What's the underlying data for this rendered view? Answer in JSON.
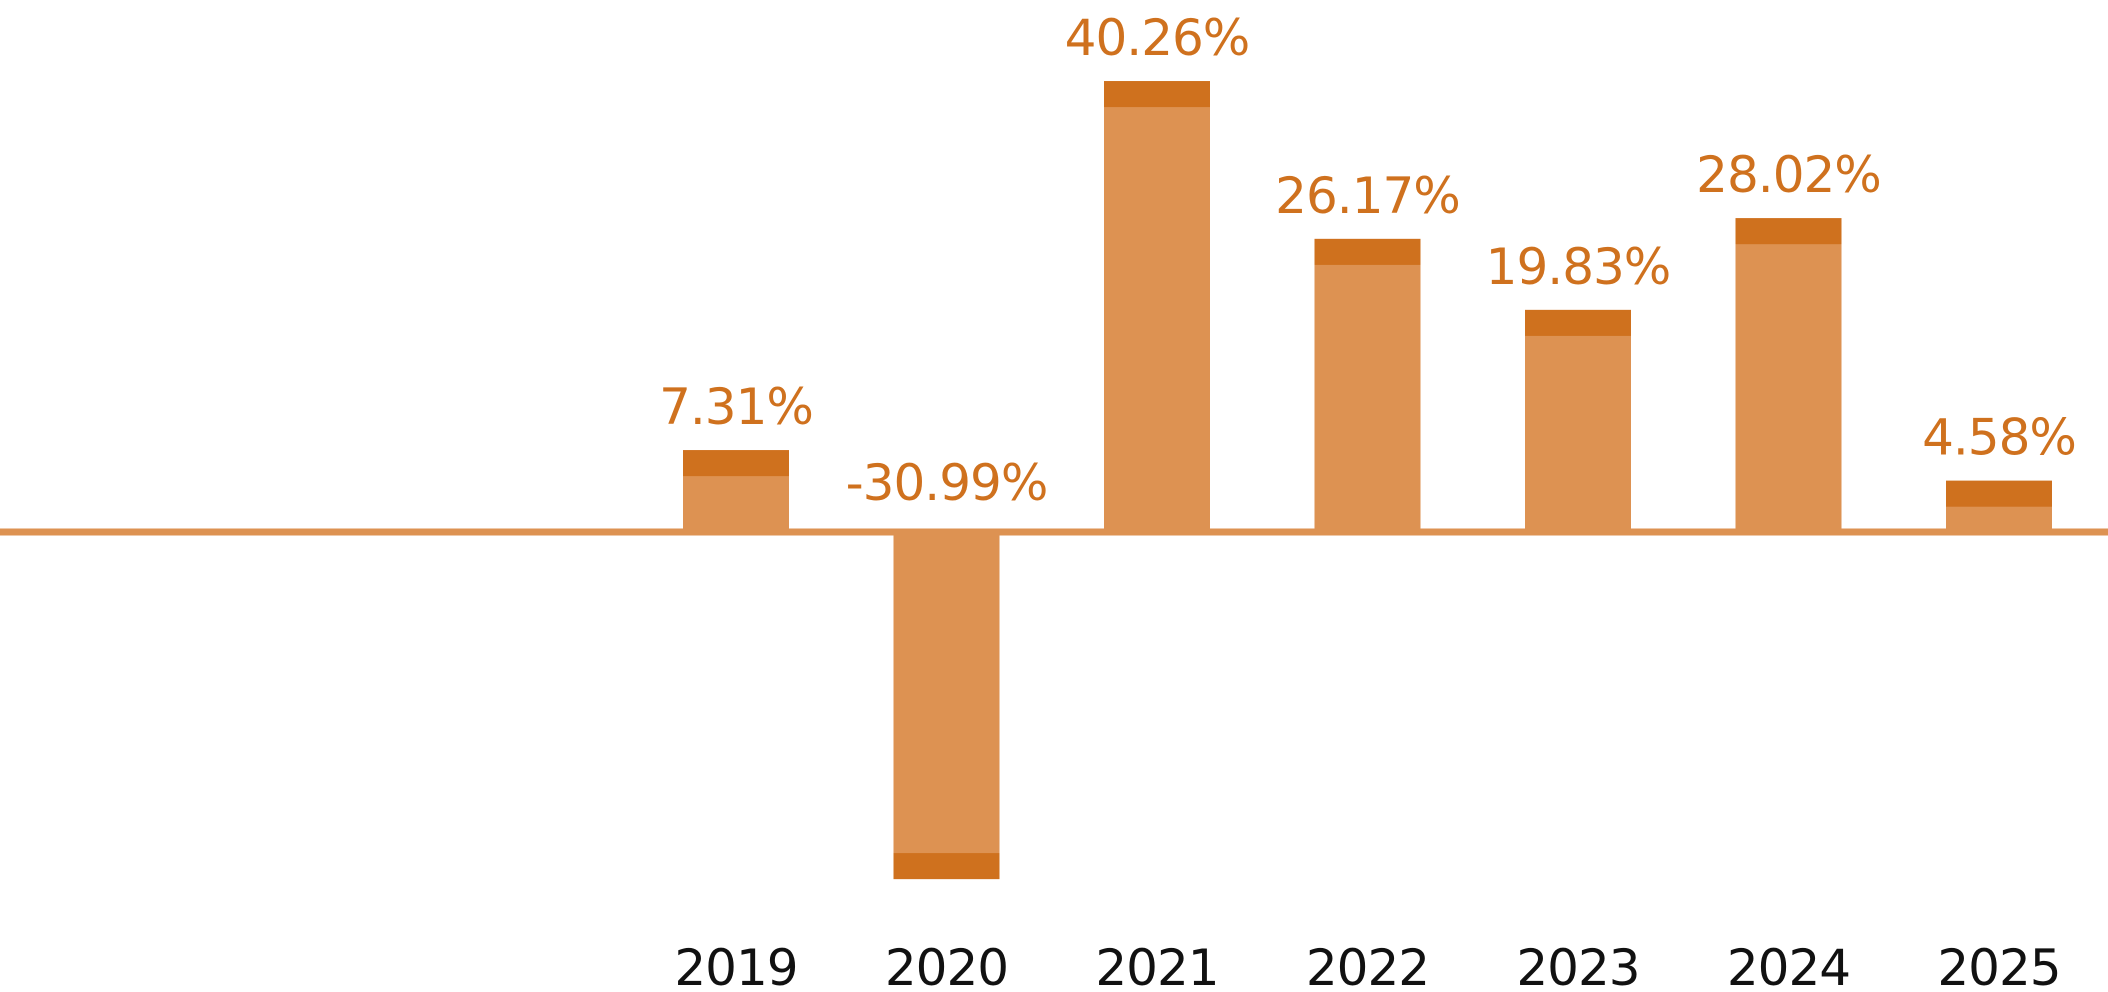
{
  "chart_data": {
    "type": "bar",
    "title": "",
    "xlabel": "",
    "ylabel": "",
    "categories": [
      "2019",
      "2020",
      "2021",
      "2022",
      "2023",
      "2024",
      "2025"
    ],
    "values": [
      7.31,
      -30.99,
      40.26,
      26.17,
      19.83,
      28.02,
      4.58
    ],
    "value_labels": [
      "7.31%",
      "-30.99%",
      "40.26%",
      "26.17%",
      "19.83%",
      "28.02%",
      "4.58%"
    ],
    "ylim": [
      -38,
      48
    ],
    "grid": false,
    "legend": "none",
    "colors": {
      "bar_fill": "#DD9252",
      "bar_cap": "#CF711E",
      "baseline": "#DD9252",
      "label_text": "#CF711E",
      "tick_text": "#111111"
    }
  }
}
